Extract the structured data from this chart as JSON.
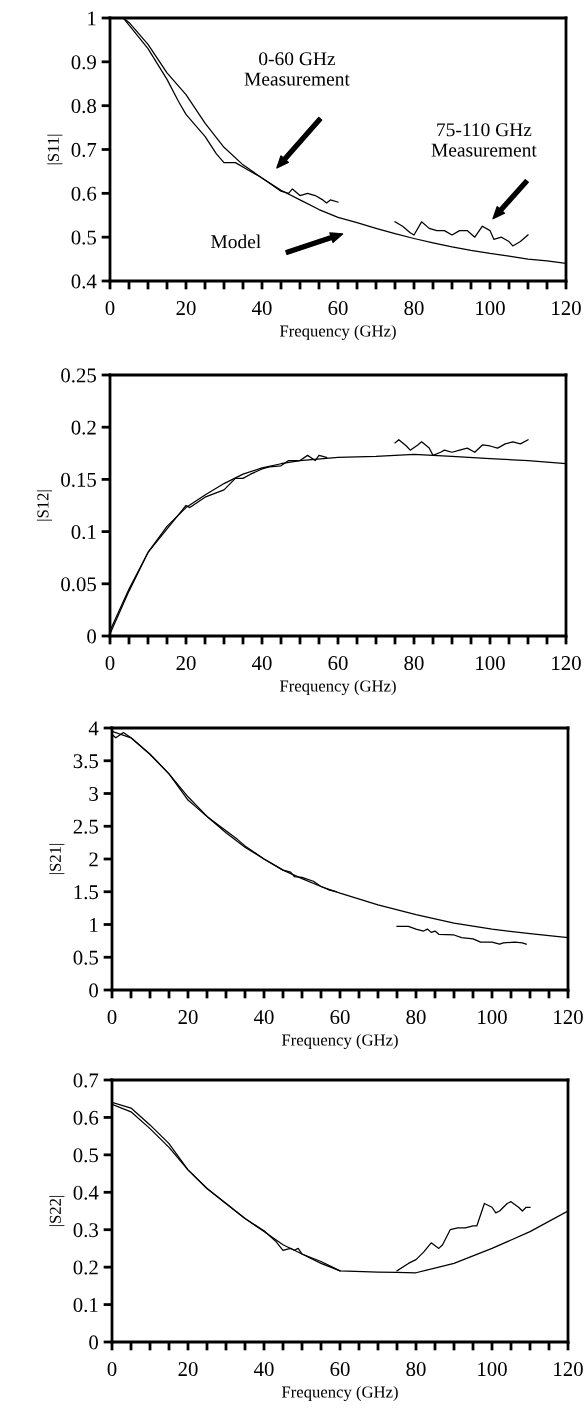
{
  "chart_data": [
    {
      "type": "line",
      "xlabel": "Frequency (GHz)",
      "ylabel": "|S11|",
      "xlim": [
        0,
        120
      ],
      "ylim": [
        0.4,
        1
      ],
      "xticks": [
        0,
        {
          "value": 5,
          "label": null
        },
        {
          "value": 10,
          "label": null
        },
        {
          "value": 15,
          "label": null
        },
        20,
        {
          "value": 25,
          "label": null
        },
        {
          "value": 30,
          "label": null
        },
        {
          "value": 35,
          "label": null
        },
        40,
        {
          "value": 45,
          "label": null
        },
        {
          "value": 50,
          "label": null
        },
        {
          "value": 55,
          "label": null
        },
        60,
        {
          "value": 65,
          "label": null
        },
        {
          "value": 70,
          "label": null
        },
        {
          "value": 75,
          "label": null
        },
        80,
        {
          "value": 85,
          "label": null
        },
        {
          "value": 90,
          "label": null
        },
        {
          "value": 95,
          "label": null
        },
        100,
        {
          "value": 105,
          "label": null
        },
        {
          "value": 110,
          "label": null
        },
        {
          "value": 115,
          "label": null
        },
        120
      ],
      "yticks": [
        0.4,
        0.5,
        0.6,
        0.7,
        0.8,
        0.9,
        1
      ],
      "grid": false,
      "legend": false,
      "series": [
        {
          "color": "#000000",
          "x": [
            3.5,
            5,
            10,
            15,
            20,
            25,
            30,
            35,
            40,
            45,
            50,
            55,
            60,
            65,
            70,
            75,
            80,
            85,
            90,
            95,
            100,
            105,
            110,
            115,
            120
          ],
          "values": [
            1.0,
            0.99,
            0.94,
            0.875,
            0.825,
            0.76,
            0.705,
            0.665,
            0.635,
            0.607,
            0.585,
            0.563,
            0.545,
            0.533,
            0.52,
            0.508,
            0.497,
            0.487,
            0.478,
            0.47,
            0.463,
            0.457,
            0.45,
            0.446,
            0.44
          ]
        },
        {
          "color": "#000000",
          "x": [
            3.5,
            10,
            15,
            18,
            20,
            23,
            25,
            28,
            30,
            33,
            36,
            40,
            45,
            47,
            48,
            50,
            52,
            54,
            56,
            57,
            58,
            60
          ],
          "values": [
            1.0,
            0.93,
            0.86,
            0.81,
            0.78,
            0.75,
            0.73,
            0.69,
            0.67,
            0.67,
            0.655,
            0.635,
            0.605,
            0.6,
            0.61,
            0.595,
            0.6,
            0.595,
            0.585,
            0.578,
            0.585,
            0.58
          ]
        },
        {
          "color": "#000000",
          "x": [
            75,
            77,
            79,
            80,
            82,
            84,
            86,
            88,
            90,
            92,
            94,
            96,
            98,
            100,
            101,
            103,
            105,
            106,
            108,
            110
          ],
          "values": [
            0.535,
            0.525,
            0.51,
            0.505,
            0.535,
            0.52,
            0.515,
            0.515,
            0.505,
            0.515,
            0.515,
            0.5,
            0.525,
            0.515,
            0.495,
            0.5,
            0.49,
            0.48,
            0.49,
            0.505
          ]
        }
      ],
      "annotations": [
        "0-60 GHz\nMeasurement",
        "75-110 GHz\nMeasurement",
        "Model"
      ]
    },
    {
      "type": "line",
      "xlabel": "Frequency (GHz)",
      "ylabel": "|S12|",
      "xlim": [
        0,
        120
      ],
      "ylim": [
        0,
        0.25
      ],
      "xticks": [
        0,
        {
          "value": 5,
          "label": null
        },
        {
          "value": 10,
          "label": null
        },
        {
          "value": 15,
          "label": null
        },
        20,
        {
          "value": 25,
          "label": null
        },
        {
          "value": 30,
          "label": null
        },
        {
          "value": 35,
          "label": null
        },
        40,
        {
          "value": 45,
          "label": null
        },
        {
          "value": 50,
          "label": null
        },
        {
          "value": 55,
          "label": null
        },
        60,
        {
          "value": 65,
          "label": null
        },
        {
          "value": 70,
          "label": null
        },
        {
          "value": 75,
          "label": null
        },
        80,
        {
          "value": 85,
          "label": null
        },
        {
          "value": 90,
          "label": null
        },
        {
          "value": 95,
          "label": null
        },
        100,
        {
          "value": 105,
          "label": null
        },
        {
          "value": 110,
          "label": null
        },
        {
          "value": 115,
          "label": null
        },
        120
      ],
      "yticks": [
        0,
        0.05,
        0.1,
        0.15,
        0.2,
        0.25
      ],
      "grid": false,
      "legend": false,
      "series": [
        {
          "color": "#000000",
          "x": [
            0,
            5,
            10,
            15,
            20,
            25,
            30,
            35,
            40,
            45,
            50,
            60,
            70,
            80,
            90,
            100,
            110,
            120
          ],
          "values": [
            0.005,
            0.045,
            0.08,
            0.105,
            0.123,
            0.135,
            0.146,
            0.155,
            0.161,
            0.165,
            0.168,
            0.171,
            0.172,
            0.174,
            0.172,
            0.17,
            0.168,
            0.165
          ]
        },
        {
          "color": "#000000",
          "x": [
            0,
            5,
            10,
            20,
            21,
            25,
            30,
            33,
            35,
            37,
            40,
            42,
            45,
            47,
            50,
            52,
            54,
            55,
            56,
            57
          ],
          "values": [
            0.002,
            0.043,
            0.08,
            0.125,
            0.123,
            0.133,
            0.14,
            0.151,
            0.151,
            0.155,
            0.16,
            0.162,
            0.163,
            0.168,
            0.168,
            0.173,
            0.168,
            0.173,
            0.172,
            0.171
          ]
        },
        {
          "color": "#000000",
          "x": [
            75,
            76,
            78,
            79,
            81,
            82,
            84,
            85,
            87,
            88,
            90,
            92,
            94,
            96,
            98,
            100,
            102,
            104,
            106,
            108,
            110
          ],
          "values": [
            0.185,
            0.188,
            0.182,
            0.178,
            0.183,
            0.186,
            0.18,
            0.173,
            0.176,
            0.178,
            0.176,
            0.178,
            0.18,
            0.176,
            0.183,
            0.182,
            0.18,
            0.184,
            0.186,
            0.184,
            0.188
          ]
        }
      ]
    },
    {
      "type": "line",
      "xlabel": "Frequency (GHz)",
      "ylabel": "|S21|",
      "xlim": [
        0,
        120
      ],
      "ylim": [
        0,
        4
      ],
      "xticks": [
        0,
        {
          "value": 5,
          "label": null
        },
        {
          "value": 10,
          "label": null
        },
        {
          "value": 15,
          "label": null
        },
        20,
        {
          "value": 25,
          "label": null
        },
        {
          "value": 30,
          "label": null
        },
        {
          "value": 35,
          "label": null
        },
        40,
        {
          "value": 45,
          "label": null
        },
        {
          "value": 50,
          "label": null
        },
        {
          "value": 55,
          "label": null
        },
        60,
        {
          "value": 65,
          "label": null
        },
        {
          "value": 70,
          "label": null
        },
        {
          "value": 75,
          "label": null
        },
        80,
        {
          "value": 85,
          "label": null
        },
        {
          "value": 90,
          "label": null
        },
        {
          "value": 95,
          "label": null
        },
        100,
        {
          "value": 105,
          "label": null
        },
        {
          "value": 110,
          "label": null
        },
        {
          "value": 115,
          "label": null
        },
        120
      ],
      "yticks": [
        0,
        0.5,
        1,
        1.5,
        2,
        2.5,
        3,
        3.5,
        4
      ],
      "grid": false,
      "legend": false,
      "series": [
        {
          "color": "#000000",
          "x": [
            0,
            5,
            10,
            15,
            20,
            25,
            30,
            35,
            40,
            45,
            50,
            55,
            60,
            70,
            80,
            90,
            100,
            110,
            120
          ],
          "values": [
            3.95,
            3.85,
            3.6,
            3.3,
            2.95,
            2.65,
            2.4,
            2.18,
            2.0,
            1.83,
            1.7,
            1.58,
            1.48,
            1.3,
            1.15,
            1.02,
            0.93,
            0.86,
            0.8
          ]
        },
        {
          "color": "#000000",
          "x": [
            0,
            1,
            3,
            5,
            10,
            15,
            20,
            22,
            25,
            30,
            33,
            35,
            40,
            45,
            47,
            48,
            50,
            53,
            55,
            57,
            59
          ],
          "values": [
            3.9,
            3.85,
            3.93,
            3.85,
            3.6,
            3.3,
            2.9,
            2.8,
            2.65,
            2.43,
            2.3,
            2.2,
            2.0,
            1.83,
            1.8,
            1.73,
            1.72,
            1.66,
            1.58,
            1.53,
            1.5
          ]
        },
        {
          "color": "#000000",
          "x": [
            75,
            78,
            80,
            82,
            83,
            84,
            85,
            86,
            90,
            92,
            95,
            97,
            100,
            102,
            103,
            106,
            108,
            109
          ],
          "values": [
            0.97,
            0.97,
            0.93,
            0.9,
            0.93,
            0.88,
            0.9,
            0.85,
            0.84,
            0.8,
            0.78,
            0.73,
            0.73,
            0.7,
            0.72,
            0.73,
            0.72,
            0.7
          ]
        }
      ]
    },
    {
      "type": "line",
      "xlabel": "Frequency (GHz)",
      "ylabel": "|S22|",
      "xlim": [
        0,
        120
      ],
      "ylim": [
        0,
        0.7
      ],
      "xticks": [
        0,
        {
          "value": 5,
          "label": null
        },
        {
          "value": 10,
          "label": null
        },
        {
          "value": 15,
          "label": null
        },
        20,
        {
          "value": 25,
          "label": null
        },
        {
          "value": 30,
          "label": null
        },
        {
          "value": 35,
          "label": null
        },
        40,
        {
          "value": 45,
          "label": null
        },
        {
          "value": 50,
          "label": null
        },
        {
          "value": 55,
          "label": null
        },
        60,
        {
          "value": 65,
          "label": null
        },
        {
          "value": 70,
          "label": null
        },
        {
          "value": 75,
          "label": null
        },
        80,
        {
          "value": 85,
          "label": null
        },
        {
          "value": 90,
          "label": null
        },
        {
          "value": 95,
          "label": null
        },
        100,
        {
          "value": 105,
          "label": null
        },
        {
          "value": 110,
          "label": null
        },
        {
          "value": 115,
          "label": null
        },
        120
      ],
      "yticks": [
        0,
        0.1,
        0.2,
        0.3,
        0.4,
        0.5,
        0.6,
        0.7
      ],
      "grid": false,
      "legend": false,
      "series": [
        {
          "color": "#000000",
          "x": [
            0,
            5,
            10,
            15,
            20,
            25,
            30,
            35,
            40,
            45,
            50,
            55,
            60,
            70,
            75,
            80,
            90,
            100,
            110,
            120
          ],
          "values": [
            0.635,
            0.615,
            0.57,
            0.52,
            0.46,
            0.41,
            0.37,
            0.33,
            0.295,
            0.26,
            0.235,
            0.21,
            0.19,
            0.187,
            0.186,
            0.185,
            0.21,
            0.25,
            0.295,
            0.35
          ]
        },
        {
          "color": "#000000",
          "x": [
            0,
            5,
            10,
            15,
            20,
            25,
            30,
            35,
            40,
            43,
            45,
            47,
            48,
            49,
            50,
            55,
            58,
            60
          ],
          "values": [
            0.64,
            0.625,
            0.58,
            0.53,
            0.46,
            0.41,
            0.37,
            0.33,
            0.297,
            0.27,
            0.245,
            0.25,
            0.245,
            0.25,
            0.235,
            0.215,
            0.2,
            0.19
          ]
        },
        {
          "color": "#000000",
          "x": [
            75,
            78,
            80,
            82,
            84,
            86,
            87,
            89,
            91,
            93,
            95,
            96,
            98,
            100,
            101,
            102,
            104,
            105,
            107,
            108,
            109,
            110
          ],
          "values": [
            0.19,
            0.21,
            0.22,
            0.24,
            0.265,
            0.25,
            0.26,
            0.3,
            0.305,
            0.305,
            0.31,
            0.31,
            0.37,
            0.36,
            0.345,
            0.35,
            0.37,
            0.375,
            0.36,
            0.35,
            0.36,
            0.36
          ]
        }
      ]
    }
  ]
}
